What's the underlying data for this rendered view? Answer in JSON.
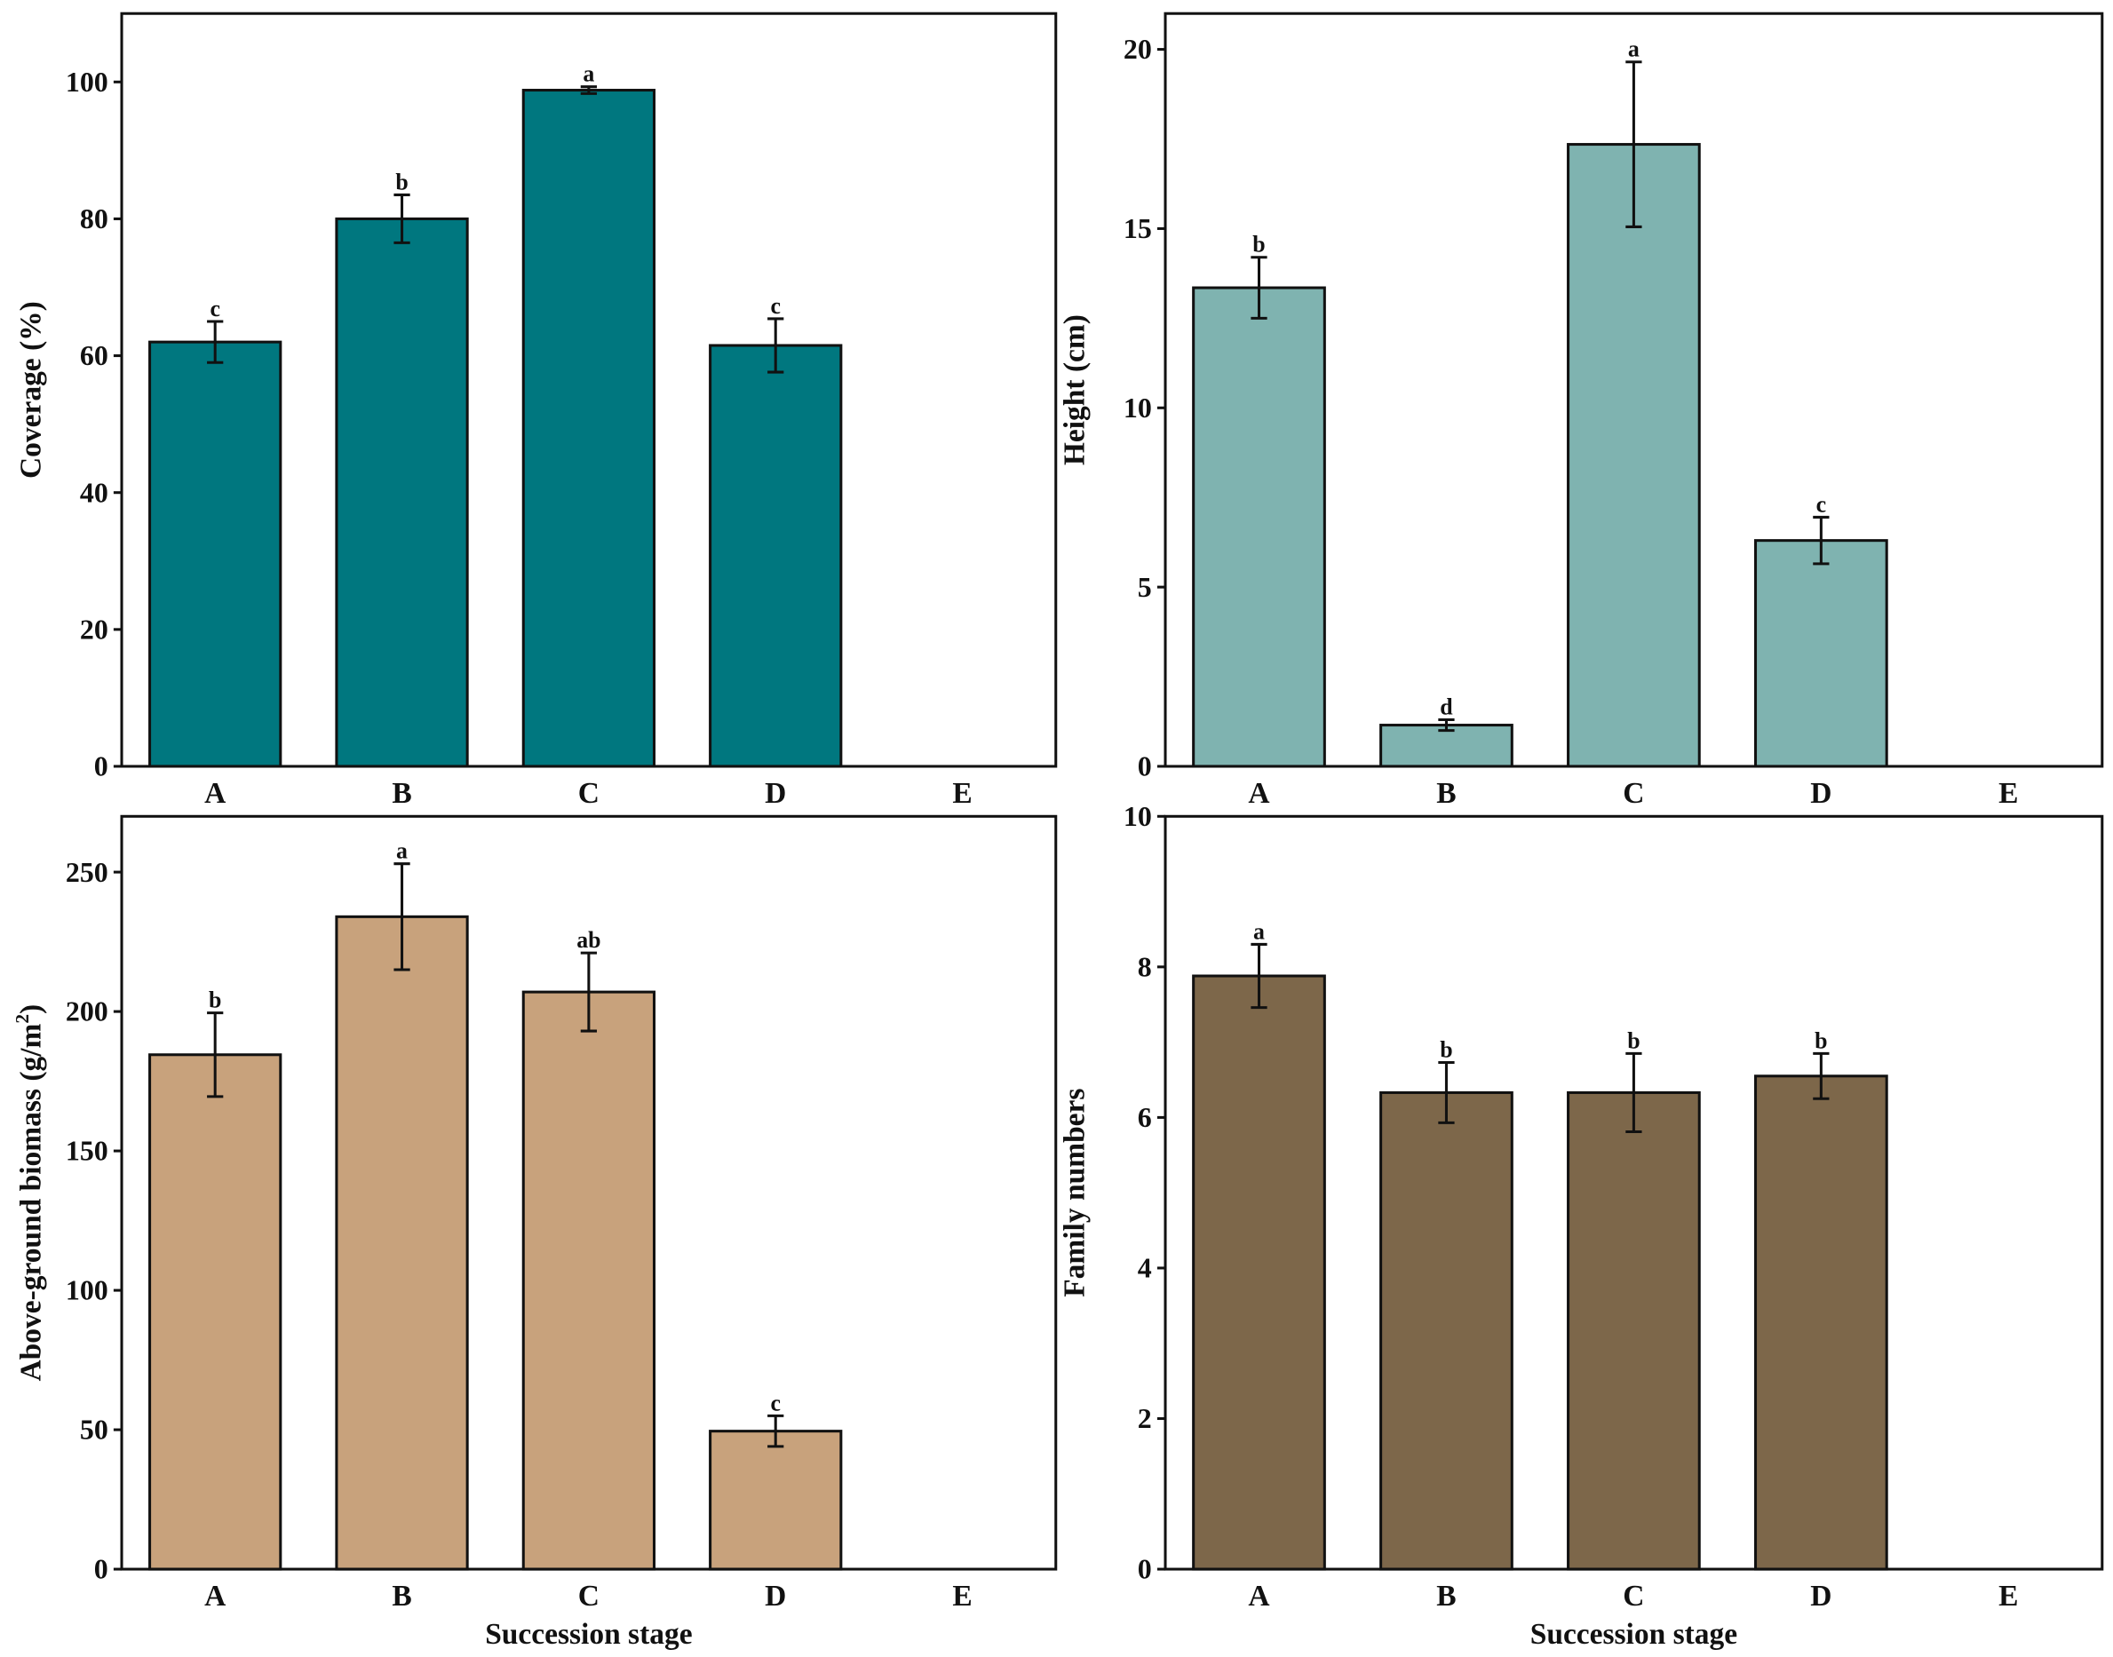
{
  "chart_data": [
    {
      "type": "bar",
      "panel": "top-left",
      "categories": [
        "A",
        "B",
        "C",
        "D",
        "E"
      ],
      "values": [
        62,
        80,
        98.8,
        61.5,
        null
      ],
      "errors": [
        3,
        3.5,
        0.5,
        3.9,
        null
      ],
      "letters": [
        "c",
        "b",
        "a",
        "c",
        ""
      ],
      "ylabel": "Coverage (%)",
      "xlabel": "",
      "ylim": [
        0,
        110
      ],
      "yticks": [
        0,
        20,
        40,
        60,
        80,
        100
      ],
      "color": "#00777f"
    },
    {
      "type": "bar",
      "panel": "top-right",
      "categories": [
        "A",
        "B",
        "C",
        "D",
        "E"
      ],
      "values": [
        13.35,
        1.15,
        17.35,
        6.3,
        null
      ],
      "errors": [
        0.85,
        0.15,
        2.3,
        0.65,
        null
      ],
      "letters": [
        "b",
        "d",
        "a",
        "c",
        ""
      ],
      "ylabel": "Height (cm)",
      "xlabel": "",
      "ylim": [
        0,
        21
      ],
      "yticks": [
        0,
        5,
        10,
        15,
        20
      ],
      "color": "#7fb3b0"
    },
    {
      "type": "bar",
      "panel": "bottom-left",
      "categories": [
        "A",
        "B",
        "C",
        "D",
        "E"
      ],
      "values": [
        184.5,
        234,
        207,
        49.5,
        null
      ],
      "errors": [
        15,
        19,
        14,
        5.5,
        null
      ],
      "letters": [
        "b",
        "a",
        "ab",
        "c",
        ""
      ],
      "ylabel": "Above-ground biomass (g/m",
      "ylabel_sup": "2",
      "ylabel_end": ")",
      "xlabel": "Succession stage",
      "ylim": [
        0,
        270
      ],
      "yticks": [
        0,
        50,
        100,
        150,
        200,
        250
      ],
      "color": "#c8a27c"
    },
    {
      "type": "bar",
      "panel": "bottom-right",
      "categories": [
        "A",
        "B",
        "C",
        "D",
        "E"
      ],
      "values": [
        7.88,
        6.33,
        6.33,
        6.55,
        null
      ],
      "errors": [
        0.42,
        0.4,
        0.52,
        0.3,
        null
      ],
      "letters": [
        "a",
        "b",
        "b",
        "b",
        ""
      ],
      "ylabel": "Family numbers",
      "xlabel": "Succession stage",
      "ylim": [
        0,
        10
      ],
      "yticks": [
        0,
        2,
        4,
        6,
        8,
        10
      ],
      "color": "#7d674a"
    }
  ]
}
